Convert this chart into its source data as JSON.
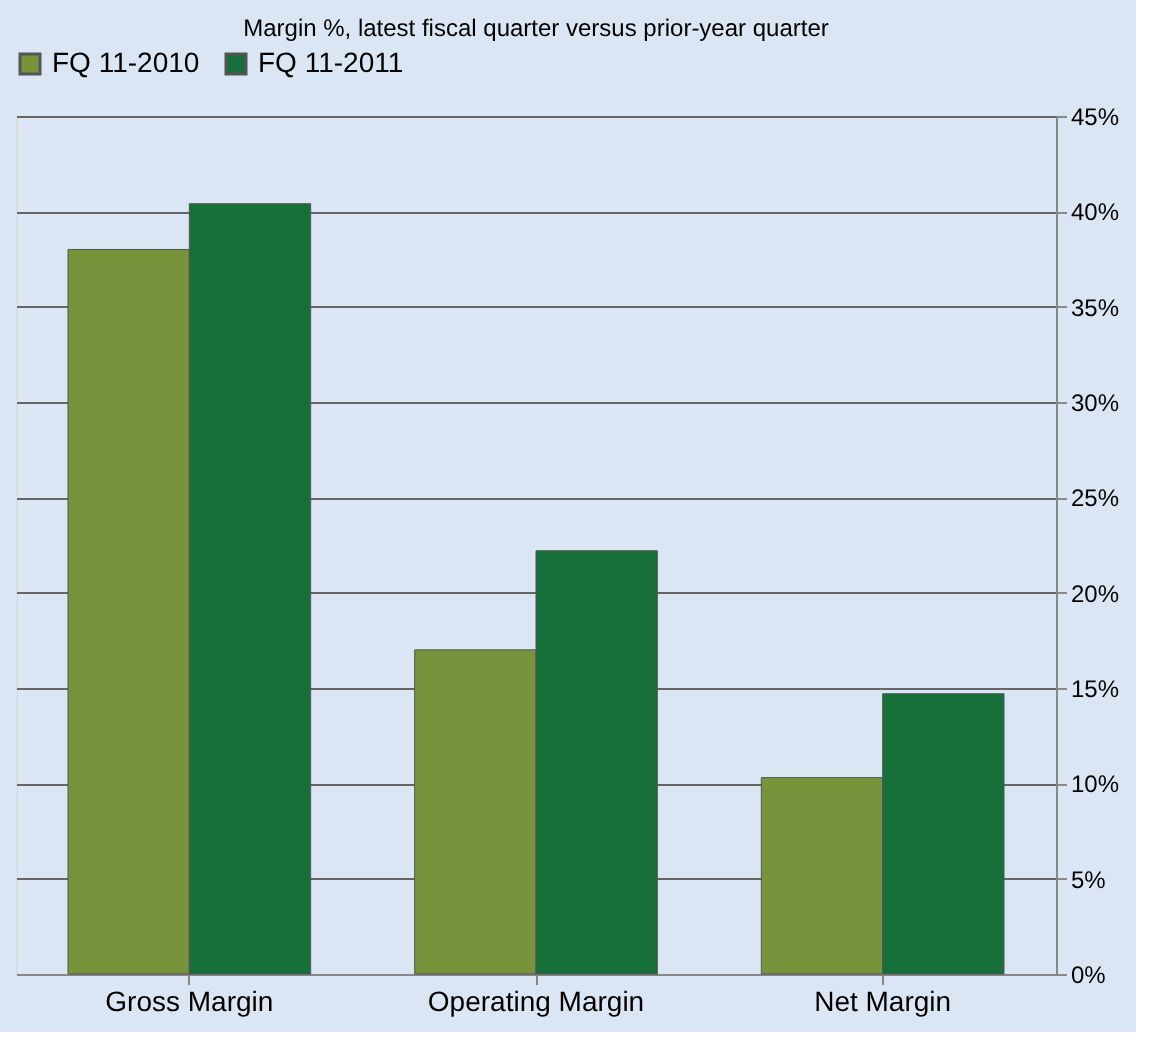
{
  "chart_data": {
    "type": "bar",
    "subtitle": "Margin %,  latest fiscal quarter versus prior-year quarter",
    "categories": [
      "Gross Margin",
      "Operating Margin",
      "Net Margin"
    ],
    "series": [
      {
        "name": "FQ 11-2010",
        "color": "#77933c",
        "values": [
          38.0,
          17.0,
          10.3
        ]
      },
      {
        "name": "FQ 11-2011",
        "color": "#17703a",
        "values": [
          40.4,
          22.2,
          14.7
        ]
      }
    ],
    "ylim": [
      0,
      45
    ],
    "yticks": [
      {
        "value": 0,
        "label": "0%"
      },
      {
        "value": 5,
        "label": "5%"
      },
      {
        "value": 10,
        "label": "10%"
      },
      {
        "value": 15,
        "label": "15%"
      },
      {
        "value": 20,
        "label": "20%"
      },
      {
        "value": 25,
        "label": "25%"
      },
      {
        "value": 30,
        "label": "30%"
      },
      {
        "value": 35,
        "label": "35%"
      },
      {
        "value": 40,
        "label": "40%"
      },
      {
        "value": 45,
        "label": "45%"
      }
    ],
    "grid": "y",
    "legend": "top"
  }
}
